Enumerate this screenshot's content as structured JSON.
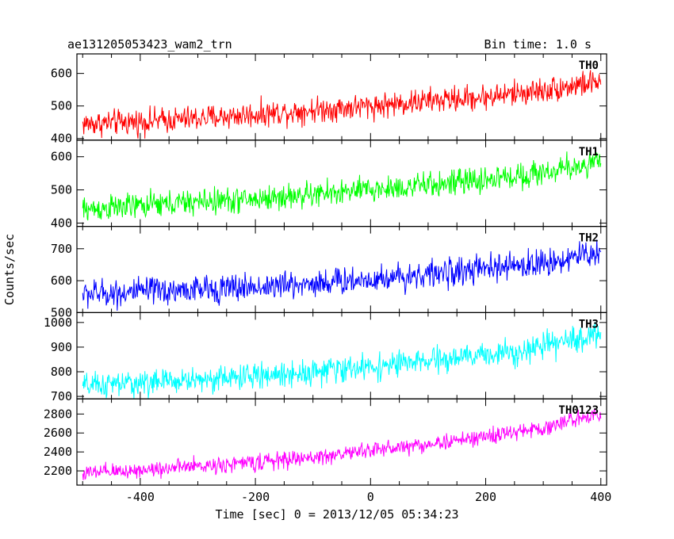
{
  "chart_data": {
    "type": "line",
    "title": "ae131205053423_wam2_trn",
    "subtitle": "Bin time: 1.0 s",
    "xlabel": "Time [sec] 0 = 2013/12/05 05:34:23",
    "ylabel": "Counts/sec",
    "xlim": [
      -510,
      410
    ],
    "xticks": [
      -400,
      -200,
      0,
      200,
      400
    ],
    "grid": false,
    "panels": [
      {
        "name": "TH0",
        "color": "#ff0000",
        "ylim": [
          395,
          660
        ],
        "yticks": [
          400,
          500,
          600
        ],
        "x": [
          -500,
          -400,
          -300,
          -200,
          -100,
          0,
          100,
          200,
          300,
          400
        ],
        "values": [
          445,
          452,
          462,
          474,
          488,
          500,
          515,
          528,
          548,
          575
        ],
        "noise": 34
      },
      {
        "name": "TH1",
        "color": "#00ff00",
        "ylim": [
          390,
          650
        ],
        "yticks": [
          400,
          500,
          600
        ],
        "x": [
          -500,
          -400,
          -300,
          -200,
          -100,
          0,
          100,
          200,
          300,
          400
        ],
        "values": [
          440,
          452,
          464,
          472,
          486,
          500,
          514,
          530,
          552,
          585
        ],
        "noise": 34
      },
      {
        "name": "TH2",
        "color": "#0000ff",
        "ylim": [
          500,
          770
        ],
        "yticks": [
          500,
          600,
          700
        ],
        "x": [
          -500,
          -400,
          -300,
          -200,
          -100,
          0,
          100,
          200,
          300,
          400
        ],
        "values": [
          558,
          565,
          572,
          580,
          592,
          605,
          620,
          636,
          655,
          690
        ],
        "noise": 38
      },
      {
        "name": "TH3",
        "color": "#00ffff",
        "ylim": [
          690,
          1040
        ],
        "yticks": [
          700,
          800,
          900,
          1000
        ],
        "x": [
          -500,
          -400,
          -300,
          -200,
          -100,
          0,
          100,
          200,
          300,
          400
        ],
        "values": [
          740,
          755,
          768,
          782,
          800,
          820,
          842,
          868,
          900,
          955
        ],
        "noise": 45
      },
      {
        "name": "TH0123",
        "color": "#ff00ff",
        "ylim": [
          2050,
          2960
        ],
        "yticks": [
          2200,
          2400,
          2600,
          2800
        ],
        "x": [
          -500,
          -400,
          -300,
          -200,
          -100,
          0,
          100,
          200,
          300,
          400
        ],
        "values": [
          2170,
          2210,
          2250,
          2290,
          2340,
          2420,
          2480,
          2560,
          2650,
          2820
        ],
        "noise": 75
      }
    ]
  }
}
